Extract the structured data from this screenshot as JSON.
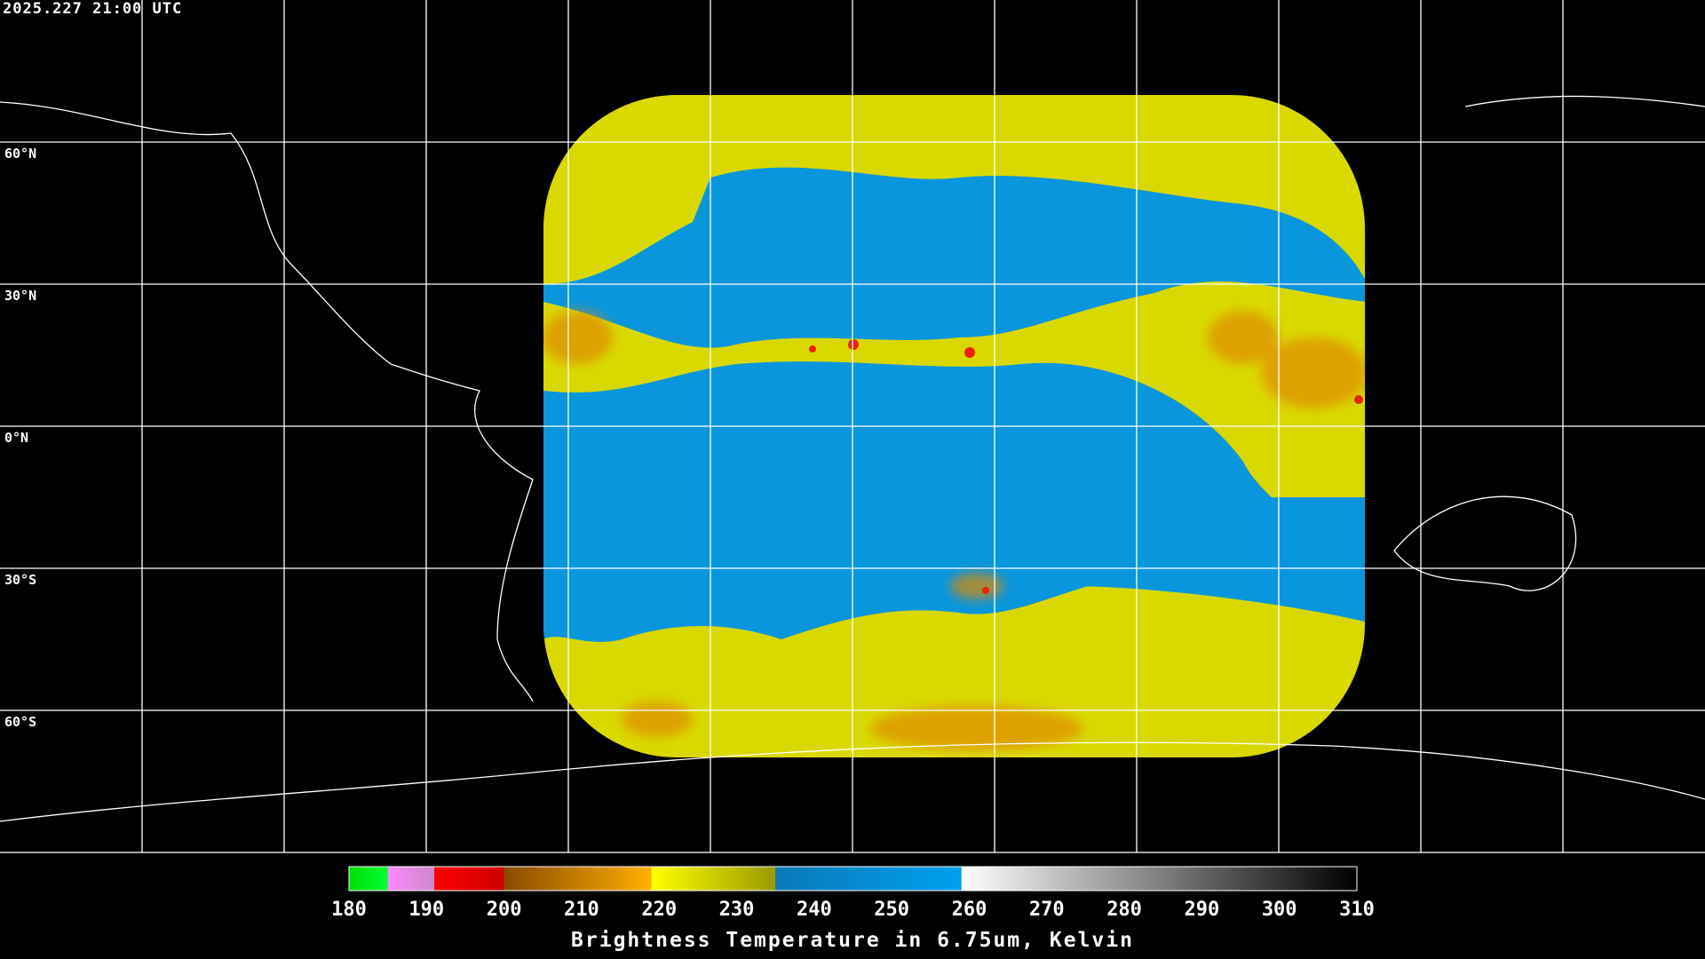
{
  "timestamp": "2025.227 21:00 UTC",
  "lat_labels": [
    "60°N",
    "30°N",
    "0°N",
    "30°S",
    "60°S"
  ],
  "colorbar": {
    "title": "Brightness Temperature in 6.75um, Kelvin",
    "ticks": [
      "180",
      "190",
      "200",
      "210",
      "220",
      "230",
      "240",
      "250",
      "260",
      "270",
      "280",
      "290",
      "300",
      "310"
    ],
    "range": [
      180,
      310
    ],
    "segments": [
      {
        "from": 180,
        "to": 185,
        "colors": [
          "#00dd00",
          "#00ff33"
        ]
      },
      {
        "from": 185,
        "to": 191,
        "colors": [
          "#ff88ff",
          "#cc88cc"
        ]
      },
      {
        "from": 191,
        "to": 200,
        "colors": [
          "#ff0000",
          "#cc0000"
        ]
      },
      {
        "from": 200,
        "to": 219,
        "colors": [
          "#8a4a00",
          "#ffb000"
        ]
      },
      {
        "from": 219,
        "to": 235,
        "colors": [
          "#ffff00",
          "#9a9a00"
        ]
      },
      {
        "from": 235,
        "to": 259,
        "colors": [
          "#0a78b8",
          "#00a0ee"
        ]
      },
      {
        "from": 259,
        "to": 310,
        "colors": [
          "#ffffff",
          "#000000"
        ]
      }
    ]
  },
  "colors": {
    "background": "#000000",
    "grid": "#ffffff",
    "data_cold": "#e6e600",
    "data_warm": "#0a96dc",
    "coast": "#ffffff"
  }
}
